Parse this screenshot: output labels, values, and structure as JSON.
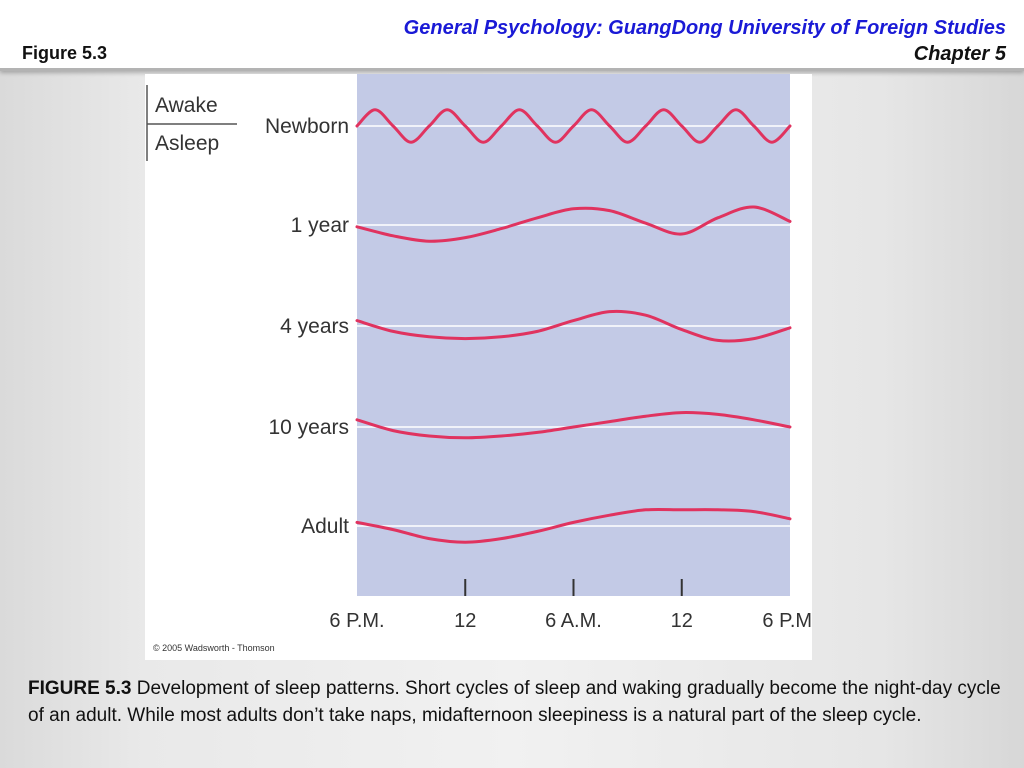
{
  "header": {
    "course_title": "General Psychology: GuangDong University of Foreign Studies",
    "chapter": "Chapter 5",
    "figure_label": "Figure 5.3"
  },
  "colors": {
    "plot_background": "#c3cae6",
    "curve": "#e0335f",
    "title_blue": "#1a1ad6"
  },
  "chart_data": {
    "type": "line",
    "legend": {
      "upper": "Awake",
      "lower": "Asleep",
      "position": "top-left"
    },
    "x_tick_labels": [
      "6 P.M.",
      "12",
      "6 A.M.",
      "12",
      "6 P.M."
    ],
    "x_hours": [
      0,
      6,
      12,
      18,
      24
    ],
    "xlim": [
      0,
      24
    ],
    "grid": true,
    "series": [
      {
        "name": "Newborn",
        "x": [
          0,
          1,
          2,
          3,
          4,
          5,
          6,
          7,
          8,
          9,
          10,
          11,
          12,
          13,
          14,
          15,
          16,
          17,
          18,
          19,
          20,
          21,
          22,
          23,
          24
        ],
        "values": [
          0.0,
          0.9,
          0.0,
          -0.9,
          0.0,
          0.9,
          0.0,
          -0.9,
          0.0,
          0.9,
          0.0,
          -0.9,
          0.0,
          0.9,
          0.0,
          -0.9,
          0.0,
          0.9,
          0.0,
          -0.9,
          0.0,
          0.9,
          0.0,
          -0.9,
          0.0
        ]
      },
      {
        "name": "1 year",
        "x": [
          0,
          2,
          4,
          6,
          8,
          10,
          12,
          14,
          16,
          18,
          20,
          22,
          24
        ],
        "values": [
          -0.1,
          -0.6,
          -0.9,
          -0.7,
          -0.2,
          0.4,
          0.9,
          0.8,
          0.1,
          -0.5,
          0.4,
          1.0,
          0.2
        ]
      },
      {
        "name": "4 years",
        "x": [
          0,
          2,
          4,
          6,
          8,
          10,
          12,
          14,
          16,
          18,
          20,
          22,
          24
        ],
        "values": [
          0.3,
          -0.3,
          -0.6,
          -0.7,
          -0.6,
          -0.3,
          0.3,
          0.8,
          0.6,
          -0.2,
          -0.8,
          -0.7,
          -0.1
        ]
      },
      {
        "name": "10 years",
        "x": [
          0,
          2,
          4,
          6,
          8,
          10,
          12,
          14,
          16,
          18,
          20,
          22,
          24
        ],
        "values": [
          0.4,
          -0.2,
          -0.5,
          -0.6,
          -0.5,
          -0.3,
          0.0,
          0.3,
          0.6,
          0.8,
          0.7,
          0.4,
          0.0
        ]
      },
      {
        "name": "Adult",
        "x": [
          0,
          2,
          4,
          6,
          8,
          10,
          12,
          14,
          16,
          18,
          20,
          22,
          24
        ],
        "values": [
          0.2,
          -0.2,
          -0.7,
          -0.9,
          -0.7,
          -0.3,
          0.2,
          0.6,
          0.9,
          0.9,
          0.9,
          0.8,
          0.4
        ]
      }
    ]
  },
  "credit": "© 2005 Wadsworth - Thomson",
  "caption": {
    "lead": "FIGURE 5.3",
    "text": " Development of sleep patterns. Short cycles of  sleep and waking gradually become the night-day cycle of an  adult. While most adults don’t take naps, midafternoon sleepiness  is a natural part of the sleep cycle."
  }
}
